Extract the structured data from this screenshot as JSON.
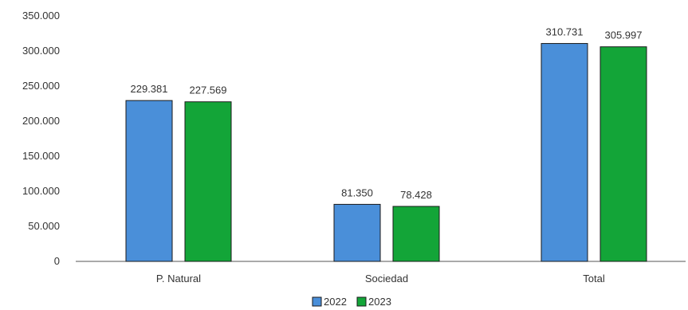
{
  "chart_data": {
    "type": "bar",
    "categories": [
      "P. Natural",
      "Sociedad",
      "Total"
    ],
    "series": [
      {
        "name": "2022",
        "values": [
          229381,
          81350,
          310731
        ],
        "labels": [
          "229.381",
          "81.350",
          "310.731"
        ],
        "color": "#4A8FD9"
      },
      {
        "name": "2023",
        "values": [
          227569,
          78428,
          305997
        ],
        "labels": [
          "227.569",
          "78.428",
          "305.997"
        ],
        "color": "#13A538"
      }
    ],
    "yticks": [
      {
        "value": 0,
        "label": "0"
      },
      {
        "value": 50000,
        "label": "50.000"
      },
      {
        "value": 100000,
        "label": "100.000"
      },
      {
        "value": 150000,
        "label": "150.000"
      },
      {
        "value": 200000,
        "label": "200.000"
      },
      {
        "value": 250000,
        "label": "250.000"
      },
      {
        "value": 300000,
        "label": "300.000"
      },
      {
        "value": 350000,
        "label": "350.000"
      }
    ],
    "ylim": [
      0,
      350000
    ],
    "grid": false,
    "legend": "bottom-center"
  }
}
